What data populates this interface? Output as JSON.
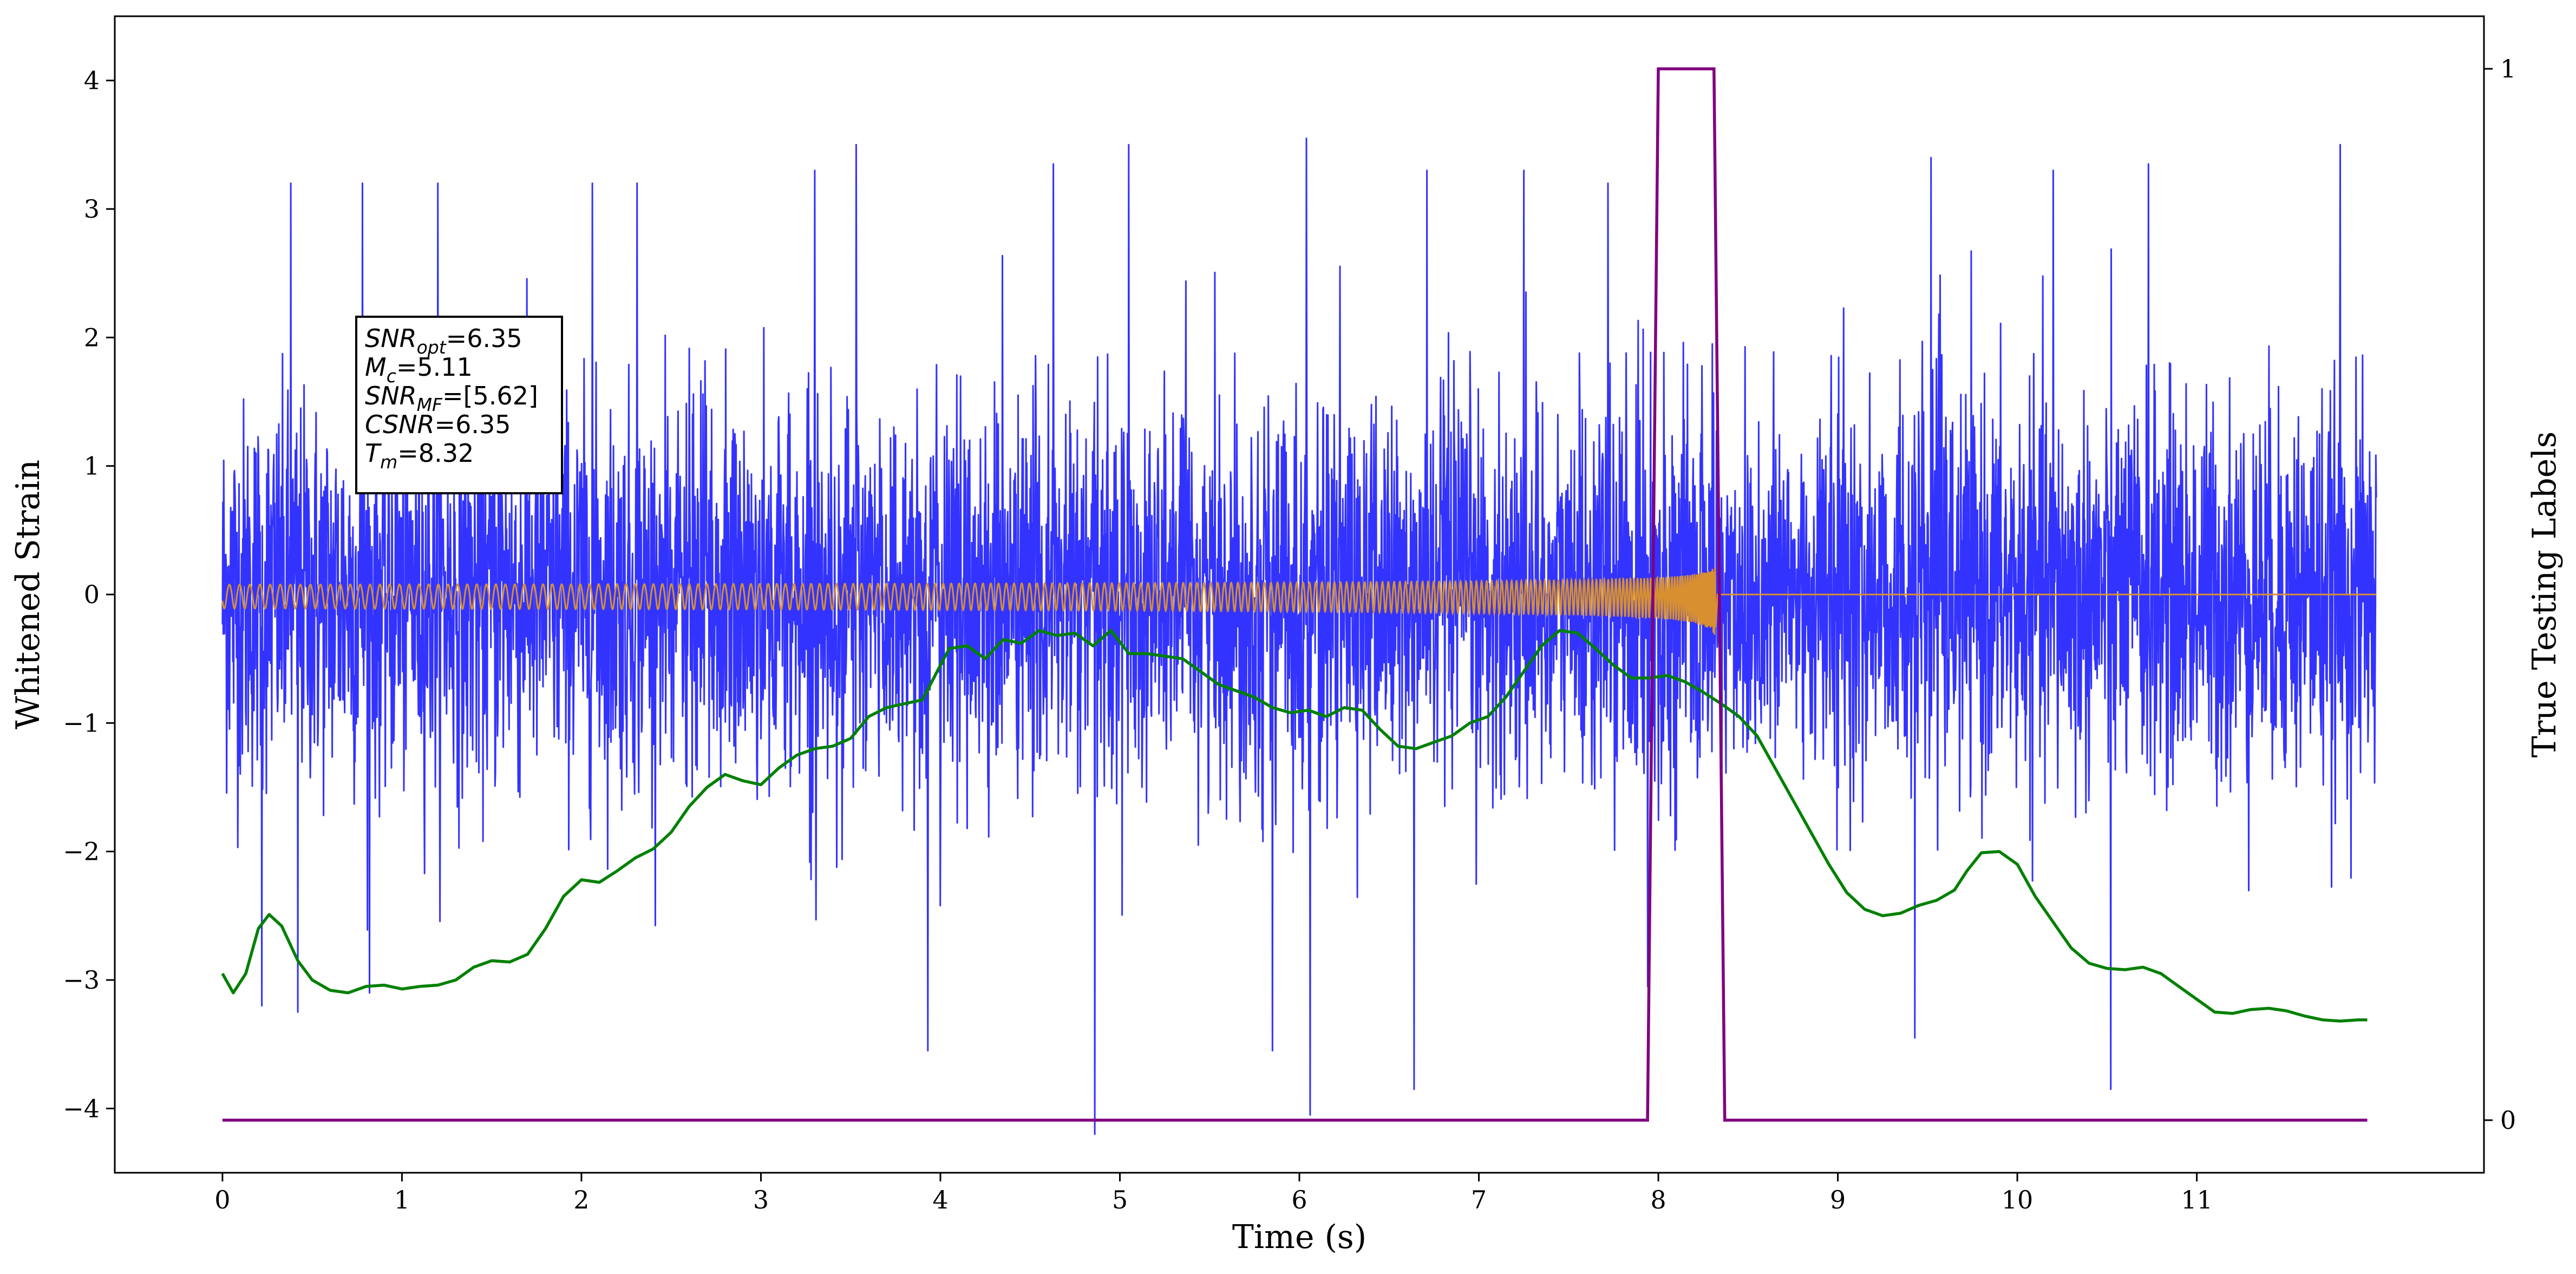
{
  "chart_data": {
    "type": "line",
    "title": "",
    "xlabel": "Time (s)",
    "ylabel": "Whitened Strain",
    "y2label": "True Testing Labels",
    "xlim": [
      -0.6,
      12.6
    ],
    "ylim": [
      -4.5,
      4.5
    ],
    "y2lim": [
      -0.05,
      1.05
    ],
    "x_ticks": [
      0,
      1,
      2,
      3,
      4,
      5,
      6,
      7,
      8,
      9,
      10,
      11
    ],
    "y_ticks": [
      -4,
      -3,
      -2,
      -1,
      0,
      1,
      2,
      3,
      4
    ],
    "y2_ticks": [
      0,
      1
    ],
    "grid": false,
    "legend": "none",
    "colors": {
      "whitened_strain": "#3333ff",
      "template": "#d88f30",
      "detection_output": "#008000",
      "true_labels": "#800080"
    },
    "series": [
      {
        "key": "whitened_strain",
        "axis": "left",
        "x_range": [
          0,
          12
        ],
        "noise_sigma": 0.75,
        "spikes": [
          [
            0.38,
            3.2
          ],
          [
            0.78,
            3.2
          ],
          [
            1.2,
            3.2
          ],
          [
            2.06,
            3.2
          ],
          [
            2.31,
            3.2
          ],
          [
            3.3,
            3.3
          ],
          [
            3.53,
            3.5
          ],
          [
            4.63,
            3.35
          ],
          [
            5.05,
            3.5
          ],
          [
            6.04,
            3.55
          ],
          [
            6.71,
            3.3
          ],
          [
            7.25,
            3.3
          ],
          [
            7.72,
            3.2
          ],
          [
            9.52,
            3.4
          ],
          [
            10.2,
            3.3
          ],
          [
            10.73,
            3.35
          ],
          [
            11.8,
            3.5
          ],
          [
            4.86,
            -4.2
          ],
          [
            6.06,
            -4.05
          ],
          [
            6.64,
            -3.85
          ],
          [
            10.52,
            -3.85
          ],
          [
            9.43,
            -3.45
          ],
          [
            3.93,
            -3.55
          ],
          [
            5.85,
            -3.55
          ],
          [
            0.82,
            -3.1
          ],
          [
            0.22,
            -3.2
          ],
          [
            0.42,
            -3.25
          ],
          [
            7.94,
            -3.05
          ],
          [
            8.3,
            1.95
          ]
        ]
      },
      {
        "key": "template",
        "axis": "left",
        "description_free": true,
        "x_range": [
          0,
          8.32
        ],
        "merger_time": 8.32,
        "peak_amplitude_pos": 0.48,
        "peak_amplitude_neg": -0.68,
        "initial_amplitude": 0.04
      },
      {
        "key": "detection_output",
        "axis": "left",
        "points": [
          [
            0.0,
            -2.95
          ],
          [
            0.06,
            -3.1
          ],
          [
            0.13,
            -2.95
          ],
          [
            0.2,
            -2.6
          ],
          [
            0.26,
            -2.49
          ],
          [
            0.33,
            -2.58
          ],
          [
            0.42,
            -2.85
          ],
          [
            0.5,
            -3.0
          ],
          [
            0.6,
            -3.08
          ],
          [
            0.7,
            -3.1
          ],
          [
            0.8,
            -3.05
          ],
          [
            0.9,
            -3.04
          ],
          [
            1.0,
            -3.07
          ],
          [
            1.1,
            -3.05
          ],
          [
            1.2,
            -3.04
          ],
          [
            1.3,
            -3.0
          ],
          [
            1.4,
            -2.9
          ],
          [
            1.5,
            -2.85
          ],
          [
            1.6,
            -2.86
          ],
          [
            1.7,
            -2.8
          ],
          [
            1.8,
            -2.6
          ],
          [
            1.9,
            -2.35
          ],
          [
            2.0,
            -2.22
          ],
          [
            2.1,
            -2.24
          ],
          [
            2.2,
            -2.15
          ],
          [
            2.3,
            -2.05
          ],
          [
            2.4,
            -1.98
          ],
          [
            2.5,
            -1.85
          ],
          [
            2.6,
            -1.65
          ],
          [
            2.7,
            -1.5
          ],
          [
            2.8,
            -1.4
          ],
          [
            2.9,
            -1.45
          ],
          [
            3.0,
            -1.48
          ],
          [
            3.1,
            -1.35
          ],
          [
            3.2,
            -1.25
          ],
          [
            3.3,
            -1.2
          ],
          [
            3.4,
            -1.18
          ],
          [
            3.5,
            -1.12
          ],
          [
            3.6,
            -0.95
          ],
          [
            3.7,
            -0.88
          ],
          [
            3.8,
            -0.85
          ],
          [
            3.9,
            -0.82
          ],
          [
            4.0,
            -0.55
          ],
          [
            4.05,
            -0.42
          ],
          [
            4.15,
            -0.4
          ],
          [
            4.25,
            -0.5
          ],
          [
            4.35,
            -0.35
          ],
          [
            4.45,
            -0.38
          ],
          [
            4.55,
            -0.28
          ],
          [
            4.65,
            -0.32
          ],
          [
            4.75,
            -0.3
          ],
          [
            4.85,
            -0.4
          ],
          [
            4.95,
            -0.28
          ],
          [
            5.05,
            -0.46
          ],
          [
            5.15,
            -0.46
          ],
          [
            5.25,
            -0.48
          ],
          [
            5.35,
            -0.5
          ],
          [
            5.45,
            -0.6
          ],
          [
            5.55,
            -0.7
          ],
          [
            5.65,
            -0.75
          ],
          [
            5.75,
            -0.8
          ],
          [
            5.85,
            -0.88
          ],
          [
            5.95,
            -0.92
          ],
          [
            6.05,
            -0.9
          ],
          [
            6.15,
            -0.95
          ],
          [
            6.25,
            -0.88
          ],
          [
            6.35,
            -0.9
          ],
          [
            6.45,
            -1.05
          ],
          [
            6.55,
            -1.18
          ],
          [
            6.65,
            -1.2
          ],
          [
            6.75,
            -1.15
          ],
          [
            6.85,
            -1.1
          ],
          [
            6.95,
            -1.0
          ],
          [
            7.05,
            -0.95
          ],
          [
            7.15,
            -0.8
          ],
          [
            7.25,
            -0.6
          ],
          [
            7.35,
            -0.4
          ],
          [
            7.45,
            -0.28
          ],
          [
            7.55,
            -0.3
          ],
          [
            7.65,
            -0.42
          ],
          [
            7.75,
            -0.55
          ],
          [
            7.85,
            -0.65
          ],
          [
            7.95,
            -0.65
          ],
          [
            8.05,
            -0.63
          ],
          [
            8.15,
            -0.68
          ],
          [
            8.25,
            -0.76
          ],
          [
            8.35,
            -0.85
          ],
          [
            8.45,
            -0.95
          ],
          [
            8.55,
            -1.1
          ],
          [
            8.65,
            -1.35
          ],
          [
            8.75,
            -1.6
          ],
          [
            8.85,
            -1.85
          ],
          [
            8.95,
            -2.1
          ],
          [
            9.05,
            -2.32
          ],
          [
            9.15,
            -2.45
          ],
          [
            9.25,
            -2.5
          ],
          [
            9.35,
            -2.48
          ],
          [
            9.45,
            -2.42
          ],
          [
            9.55,
            -2.38
          ],
          [
            9.65,
            -2.3
          ],
          [
            9.72,
            -2.15
          ],
          [
            9.8,
            -2.01
          ],
          [
            9.9,
            -2.0
          ],
          [
            10.0,
            -2.1
          ],
          [
            10.1,
            -2.35
          ],
          [
            10.2,
            -2.55
          ],
          [
            10.3,
            -2.75
          ],
          [
            10.4,
            -2.87
          ],
          [
            10.5,
            -2.91
          ],
          [
            10.6,
            -2.92
          ],
          [
            10.7,
            -2.9
          ],
          [
            10.8,
            -2.95
          ],
          [
            10.9,
            -3.05
          ],
          [
            11.0,
            -3.15
          ],
          [
            11.1,
            -3.25
          ],
          [
            11.2,
            -3.26
          ],
          [
            11.3,
            -3.23
          ],
          [
            11.4,
            -3.22
          ],
          [
            11.5,
            -3.24
          ],
          [
            11.6,
            -3.28
          ],
          [
            11.7,
            -3.31
          ],
          [
            11.8,
            -3.32
          ],
          [
            11.9,
            -3.31
          ],
          [
            11.95,
            -3.31
          ]
        ]
      },
      {
        "key": "true_labels",
        "axis": "right",
        "points": [
          [
            0.0,
            0
          ],
          [
            7.94,
            0
          ],
          [
            8.0,
            1
          ],
          [
            8.31,
            1
          ],
          [
            8.37,
            0
          ],
          [
            11.95,
            0
          ]
        ]
      }
    ],
    "annotation": {
      "lines": [
        {
          "var": "SNR",
          "sub": "opt",
          "val": "=6.35"
        },
        {
          "var": "M",
          "sub": "c",
          "val": "=5.11"
        },
        {
          "var": "SNR",
          "sub": "MF",
          "val": "=[5.62]"
        },
        {
          "var": "CSNR",
          "sub": "",
          "val": "=6.35"
        },
        {
          "var": "T",
          "sub": "m",
          "val": "=8.32"
        }
      ]
    }
  }
}
